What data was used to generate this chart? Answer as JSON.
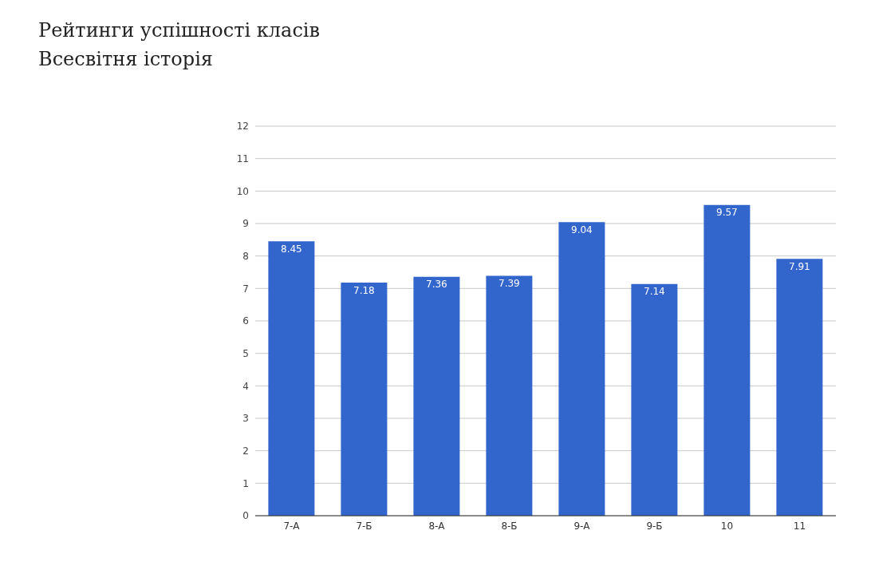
{
  "chart_data": {
    "type": "bar",
    "title": "Рейтинги успішності класів",
    "subtitle": "Всесвітня історія",
    "categories": [
      "7-А",
      "7-Б",
      "8-А",
      "8-Б",
      "9-А",
      "9-Б",
      "10",
      "11"
    ],
    "values": [
      8.45,
      7.18,
      7.36,
      7.39,
      9.04,
      7.14,
      9.57,
      7.91
    ],
    "color": "#3366cc",
    "ylim": [
      0,
      12
    ],
    "yticks": [
      0,
      1,
      2,
      3,
      4,
      5,
      6,
      7,
      8,
      9,
      10,
      11,
      12
    ],
    "grid": "y",
    "data_labels": true,
    "legend": false
  }
}
